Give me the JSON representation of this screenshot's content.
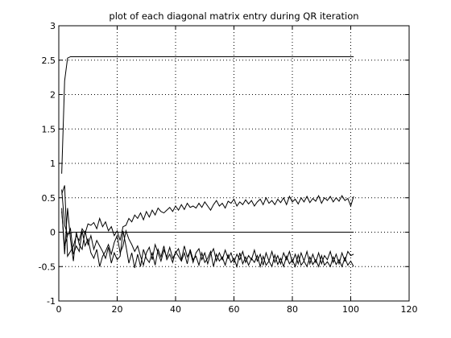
{
  "chart_data": {
    "type": "line",
    "title": "plot of each diagonal matrix entry during QR iteration",
    "xlabel": "",
    "ylabel": "",
    "xlim": [
      0,
      120
    ],
    "ylim": [
      -1,
      3
    ],
    "x_ticks": [
      0,
      20,
      40,
      60,
      80,
      100,
      120
    ],
    "y_ticks": [
      -1,
      -0.5,
      0,
      0.5,
      1,
      1.5,
      2,
      2.5,
      3
    ],
    "x_tick_labels": [
      "0",
      "20",
      "40",
      "60",
      "80",
      "100",
      "120"
    ],
    "y_tick_labels": [
      "-1",
      "-0.5",
      "0",
      "0.5",
      "1",
      "1.5",
      "2",
      "2.5",
      "3"
    ],
    "grid": true,
    "legend": "none",
    "line_color": "#000000",
    "x": [
      1,
      2,
      3,
      4,
      5,
      6,
      7,
      8,
      9,
      10,
      11,
      12,
      13,
      14,
      15,
      16,
      17,
      18,
      19,
      20,
      21,
      22,
      23,
      24,
      25,
      26,
      27,
      28,
      29,
      30,
      31,
      32,
      33,
      34,
      35,
      36,
      37,
      38,
      39,
      40,
      41,
      42,
      43,
      44,
      45,
      46,
      47,
      48,
      49,
      50,
      51,
      52,
      53,
      54,
      55,
      56,
      57,
      58,
      59,
      60,
      61,
      62,
      63,
      64,
      65,
      66,
      67,
      68,
      69,
      70,
      71,
      72,
      73,
      74,
      75,
      76,
      77,
      78,
      79,
      80,
      81,
      82,
      83,
      84,
      85,
      86,
      87,
      88,
      89,
      90,
      91,
      92,
      93,
      94,
      95,
      96,
      97,
      98,
      99,
      100,
      101
    ],
    "series": [
      {
        "values": [
          0.85,
          2.2,
          2.53,
          2.55,
          2.55,
          2.55,
          2.55,
          2.55,
          2.55,
          2.55,
          2.55,
          2.55,
          2.55,
          2.55,
          2.55,
          2.55,
          2.55,
          2.55,
          2.55,
          2.55,
          2.55,
          2.55,
          2.55,
          2.55,
          2.55,
          2.55,
          2.55,
          2.55,
          2.55,
          2.55,
          2.55,
          2.55,
          2.55,
          2.55,
          2.55,
          2.55,
          2.55,
          2.55,
          2.55,
          2.55,
          2.55,
          2.55,
          2.55,
          2.55,
          2.55,
          2.55,
          2.55,
          2.55,
          2.55,
          2.55,
          2.55,
          2.55,
          2.55,
          2.55,
          2.55,
          2.55,
          2.55,
          2.55,
          2.55,
          2.55,
          2.55,
          2.55,
          2.55,
          2.55,
          2.55,
          2.55,
          2.55,
          2.55,
          2.55,
          2.55,
          2.55,
          2.55,
          2.55,
          2.55,
          2.55,
          2.55,
          2.55,
          2.55,
          2.55,
          2.55,
          2.55,
          2.55,
          2.55,
          2.55,
          2.55,
          2.55,
          2.55,
          2.55,
          2.55,
          2.55,
          2.55,
          2.55,
          2.55,
          2.55,
          2.55,
          2.55,
          2.55,
          2.55,
          2.55,
          2.55,
          2.55
        ]
      },
      {
        "values": [
          0.62,
          0.1,
          -0.03,
          -0.01,
          0.0,
          0.0,
          0.0,
          0.0,
          0.0,
          0.0,
          0.0,
          0.0,
          0.0,
          0.0,
          0.0,
          0.0,
          0.0,
          0.0,
          0.0,
          0.0,
          0.0,
          0.0,
          0.0,
          0.0,
          0.0,
          0.0,
          0.0,
          0.0,
          0.0,
          0.0,
          0.0,
          0.0,
          0.0,
          0.0,
          0.0,
          0.0,
          0.0,
          0.0,
          0.0,
          0.0,
          0.0,
          0.0,
          0.0,
          0.0,
          0.0,
          0.0,
          0.0,
          0.0,
          0.0,
          0.0,
          0.0,
          0.0,
          0.0,
          0.0,
          0.0,
          0.0,
          0.0,
          0.0,
          0.0,
          0.0,
          0.0,
          0.0,
          0.0,
          0.0,
          0.0,
          0.0,
          0.0,
          0.0,
          0.0,
          0.0,
          0.0,
          0.0,
          0.0,
          0.0,
          0.0,
          0.0,
          0.0,
          0.0,
          0.0,
          0.0,
          0.0,
          0.0,
          0.0,
          0.0,
          0.0,
          0.0,
          0.0,
          0.0,
          0.0,
          0.0,
          0.0,
          0.0,
          0.0,
          0.0,
          0.0,
          0.0,
          0.0,
          0.0,
          0.0,
          0.0,
          0.0
        ]
      },
      {
        "values": [
          0.55,
          0.68,
          -0.35,
          -0.28,
          -0.2,
          -0.05,
          -0.12,
          0.05,
          -0.02,
          0.12,
          0.1,
          0.14,
          0.05,
          0.2,
          0.08,
          0.15,
          0.02,
          0.08,
          -0.05,
          0.02,
          -0.12,
          0.08,
          0.1,
          0.2,
          0.15,
          0.25,
          0.2,
          0.28,
          0.18,
          0.3,
          0.22,
          0.32,
          0.25,
          0.35,
          0.3,
          0.28,
          0.32,
          0.36,
          0.3,
          0.38,
          0.32,
          0.4,
          0.33,
          0.42,
          0.36,
          0.38,
          0.35,
          0.42,
          0.36,
          0.44,
          0.38,
          0.32,
          0.4,
          0.46,
          0.38,
          0.42,
          0.35,
          0.45,
          0.42,
          0.48,
          0.38,
          0.44,
          0.4,
          0.47,
          0.41,
          0.46,
          0.38,
          0.44,
          0.48,
          0.4,
          0.5,
          0.42,
          0.46,
          0.4,
          0.48,
          0.43,
          0.5,
          0.4,
          0.52,
          0.44,
          0.48,
          0.41,
          0.5,
          0.44,
          0.52,
          0.43,
          0.49,
          0.45,
          0.53,
          0.42,
          0.5,
          0.46,
          0.52,
          0.44,
          0.5,
          0.45,
          0.53,
          0.46,
          0.49,
          0.38,
          0.52
        ]
      },
      {
        "values": [
          0.35,
          -0.32,
          0.35,
          -0.1,
          -0.42,
          0.0,
          -0.18,
          -0.25,
          0.02,
          -0.18,
          -0.05,
          -0.25,
          -0.12,
          -0.2,
          -0.28,
          -0.38,
          -0.22,
          -0.45,
          -0.3,
          -0.4,
          -0.35,
          0.02,
          -0.2,
          -0.45,
          -0.3,
          -0.52,
          -0.32,
          -0.5,
          -0.25,
          -0.38,
          -0.44,
          -0.3,
          -0.48,
          -0.25,
          -0.36,
          -0.2,
          -0.4,
          -0.32,
          -0.44,
          -0.28,
          -0.35,
          -0.42,
          -0.3,
          -0.46,
          -0.25,
          -0.4,
          -0.35,
          -0.48,
          -0.3,
          -0.44,
          -0.38,
          -0.28,
          -0.5,
          -0.32,
          -0.42,
          -0.36,
          -0.48,
          -0.33,
          -0.44,
          -0.38,
          -0.5,
          -0.3,
          -0.46,
          -0.36,
          -0.48,
          -0.38,
          -0.44,
          -0.34,
          -0.5,
          -0.35,
          -0.48,
          -0.42,
          -0.5,
          -0.33,
          -0.47,
          -0.38,
          -0.5,
          -0.35,
          -0.46,
          -0.4,
          -0.5,
          -0.33,
          -0.48,
          -0.42,
          -0.5,
          -0.36,
          -0.47,
          -0.4,
          -0.5,
          -0.34,
          -0.48,
          -0.43,
          -0.5,
          -0.36,
          -0.47,
          -0.4,
          -0.5,
          -0.37,
          -0.48,
          -0.42,
          -0.5
        ]
      },
      {
        "values": [
          0.3,
          -0.2,
          -0.05,
          0.05,
          -0.32,
          -0.2,
          -0.28,
          0.02,
          -0.2,
          -0.1,
          -0.3,
          -0.38,
          -0.25,
          -0.5,
          -0.35,
          -0.28,
          -0.18,
          -0.32,
          -0.15,
          -0.05,
          -0.3,
          -0.2,
          0.02,
          -0.1,
          -0.18,
          -0.28,
          -0.2,
          -0.35,
          -0.48,
          -0.3,
          -0.22,
          -0.4,
          -0.18,
          -0.3,
          -0.42,
          -0.26,
          -0.36,
          -0.22,
          -0.38,
          -0.3,
          -0.24,
          -0.4,
          -0.2,
          -0.36,
          -0.28,
          -0.44,
          -0.3,
          -0.24,
          -0.4,
          -0.3,
          -0.46,
          -0.32,
          -0.24,
          -0.42,
          -0.3,
          -0.4,
          -0.26,
          -0.38,
          -0.3,
          -0.44,
          -0.32,
          -0.4,
          -0.28,
          -0.44,
          -0.34,
          -0.4,
          -0.26,
          -0.42,
          -0.32,
          -0.48,
          -0.3,
          -0.42,
          -0.28,
          -0.44,
          -0.34,
          -0.46,
          -0.3,
          -0.4,
          -0.28,
          -0.44,
          -0.32,
          -0.46,
          -0.3,
          -0.42,
          -0.28,
          -0.46,
          -0.32,
          -0.44,
          -0.3,
          -0.46,
          -0.34,
          -0.4,
          -0.28,
          -0.44,
          -0.32,
          -0.46,
          -0.3,
          -0.42,
          -0.28,
          -0.34,
          -0.32
        ]
      }
    ]
  }
}
